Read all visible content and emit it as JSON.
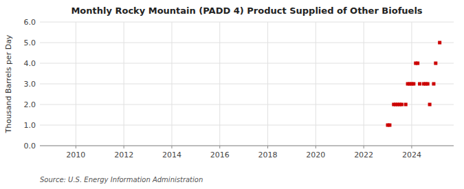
{
  "chart_data": {
    "type": "scatter",
    "title": "Monthly Rocky Mountain (PADD 4) Product Supplied of Other Biofuels",
    "ylabel": "Thousand Barrels per Day",
    "source": "Source: U.S. Energy Information Administration",
    "color": "#cc0000",
    "marker": "square",
    "grid": true,
    "xlim": [
      2008.5,
      2025.75
    ],
    "ylim": [
      0.0,
      6.0
    ],
    "xticks": [
      2010,
      2012,
      2014,
      2016,
      2018,
      2020,
      2022,
      2024
    ],
    "yticks": [
      {
        "value": 0.0,
        "label": "0.0"
      },
      {
        "value": 1.0,
        "label": "1.0"
      },
      {
        "value": 2.0,
        "label": "2.0"
      },
      {
        "value": 3.0,
        "label": "3.0"
      },
      {
        "value": 4.0,
        "label": "4.0"
      },
      {
        "value": 5.0,
        "label": "5.0"
      },
      {
        "value": 6.0,
        "label": "6.0"
      }
    ],
    "x": [
      2023.0,
      2023.083,
      2023.25,
      2023.333,
      2023.417,
      2023.5,
      2023.583,
      2023.75,
      2023.833,
      2023.917,
      2024.0,
      2024.083,
      2024.167,
      2024.25,
      2024.333,
      2024.5,
      2024.583,
      2024.667,
      2024.75,
      2024.917,
      2025.0,
      2025.167
    ],
    "values": [
      1.0,
      1.0,
      2.0,
      2.0,
      2.0,
      2.0,
      2.0,
      2.0,
      3.0,
      3.0,
      3.0,
      3.0,
      4.0,
      4.0,
      3.0,
      3.0,
      3.0,
      3.0,
      2.0,
      3.0,
      4.0,
      5.0
    ]
  }
}
